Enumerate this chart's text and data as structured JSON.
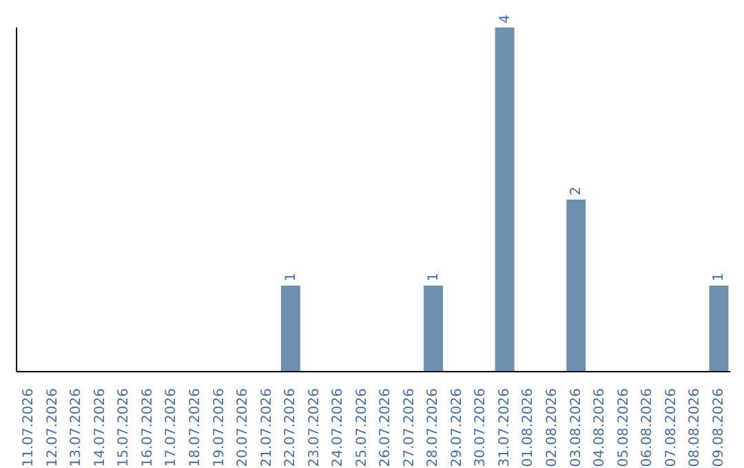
{
  "chart_data": {
    "type": "bar",
    "categories": [
      "11.07.2026",
      "12.07.2026",
      "13.07.2026",
      "14.07.2026",
      "15.07.2026",
      "16.07.2026",
      "17.07.2026",
      "18.07.2026",
      "19.07.2026",
      "20.07.2026",
      "21.07.2026",
      "22.07.2026",
      "23.07.2026",
      "24.07.2026",
      "25.07.2026",
      "26.07.2026",
      "27.07.2026",
      "28.07.2026",
      "29.07.2026",
      "30.07.2026",
      "31.07.2026",
      "01.08.2026",
      "02.08.2026",
      "03.08.2026",
      "04.08.2026",
      "05.08.2026",
      "06.08.2026",
      "07.08.2026",
      "08.08.2026",
      "09.08.2026"
    ],
    "values": [
      0,
      0,
      0,
      0,
      0,
      0,
      0,
      0,
      0,
      0,
      0,
      1,
      0,
      0,
      0,
      0,
      0,
      1,
      0,
      0,
      4,
      0,
      0,
      2,
      0,
      0,
      0,
      0,
      0,
      1
    ],
    "value_labels": [
      null,
      null,
      null,
      null,
      null,
      null,
      null,
      null,
      null,
      null,
      null,
      "1",
      null,
      null,
      null,
      null,
      null,
      "1",
      null,
      null,
      "4",
      null,
      null,
      "2",
      null,
      null,
      null,
      null,
      null,
      "1"
    ],
    "color": "#6e8fae",
    "relative": false,
    "grid": false,
    "legend": false
  }
}
